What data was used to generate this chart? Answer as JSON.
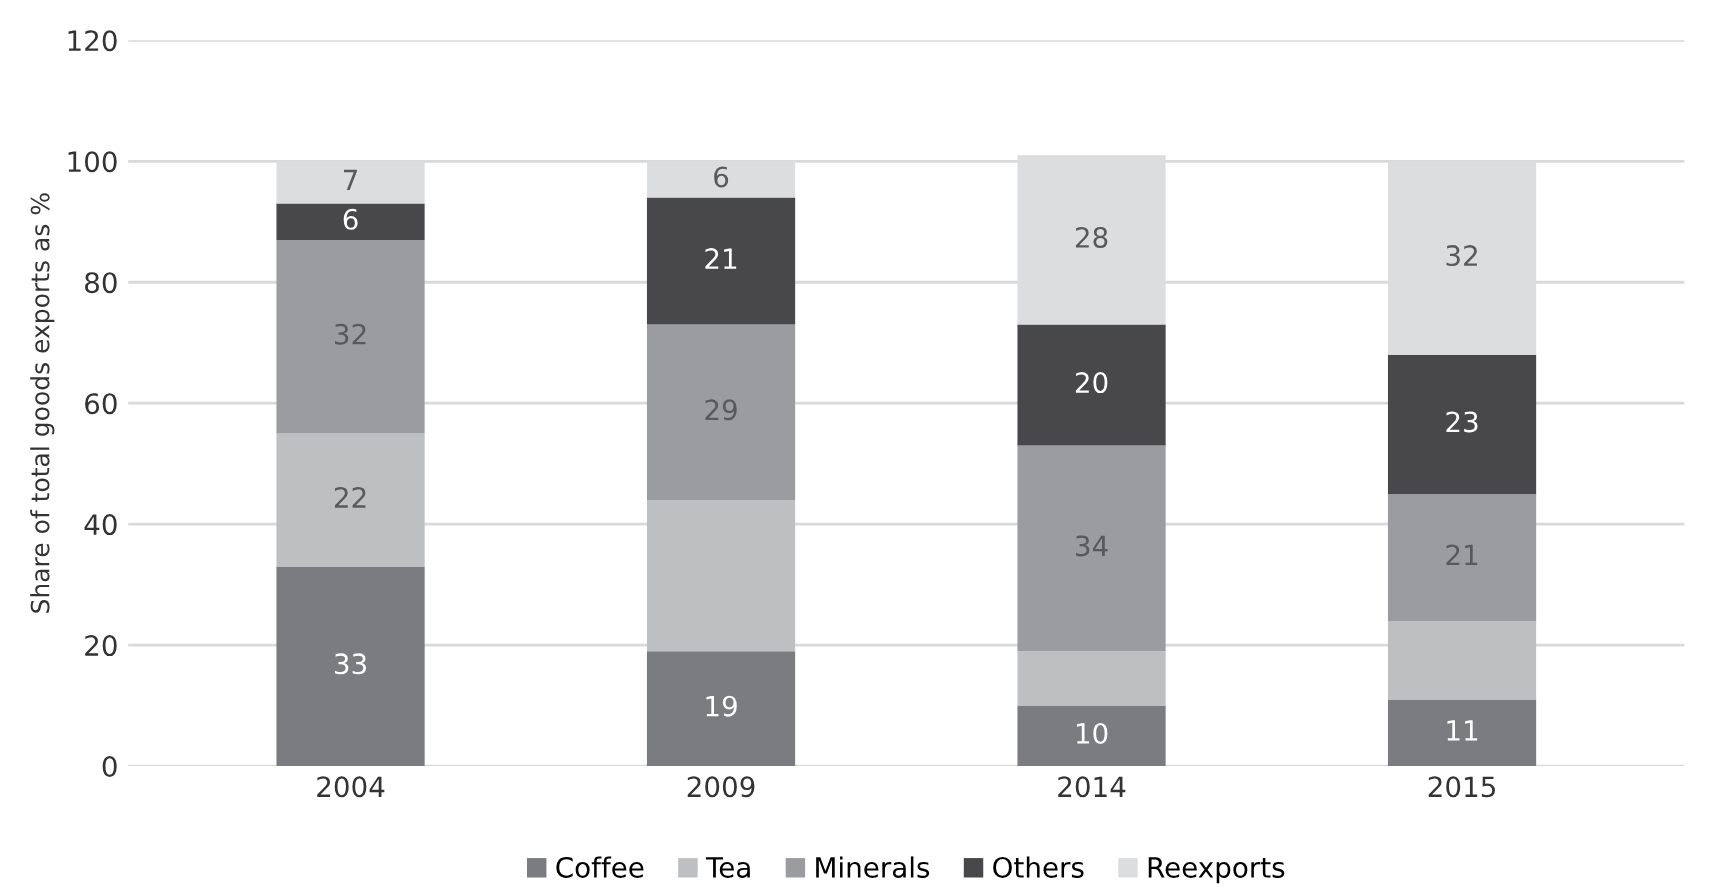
{
  "chart_data": {
    "type": "bar",
    "stacked": true,
    "ylabel": "Share of total goods exports as %",
    "categories": [
      "2004",
      "2009",
      "2014",
      "2015"
    ],
    "series": [
      {
        "name": "Coffee",
        "color": "#7b7c80",
        "values": [
          33,
          19,
          10,
          11
        ],
        "value_labels": [
          "33",
          "19",
          "10",
          "11"
        ]
      },
      {
        "name": "Tea",
        "color": "#bebfc1",
        "values": [
          22,
          25,
          9,
          13
        ],
        "value_labels": [
          "22",
          null,
          null,
          null
        ]
      },
      {
        "name": "Minerals",
        "color": "#9a9c9f",
        "values": [
          32,
          29,
          34,
          21
        ],
        "value_labels": [
          "32",
          "29",
          "34",
          "21"
        ]
      },
      {
        "name": "Others",
        "color": "#48484a",
        "values": [
          6,
          21,
          20,
          23
        ],
        "value_labels": [
          "6",
          "21",
          "20",
          "23"
        ]
      },
      {
        "name": "Reexports",
        "color": "#dcdddf",
        "values": [
          7,
          6,
          28,
          32
        ],
        "value_labels": [
          "7",
          "6",
          "28",
          "32"
        ]
      }
    ],
    "ylim": [
      0,
      120
    ],
    "yticks": [
      0,
      20,
      40,
      60,
      80,
      100,
      120
    ],
    "grid": "y",
    "legend": "bottom"
  }
}
